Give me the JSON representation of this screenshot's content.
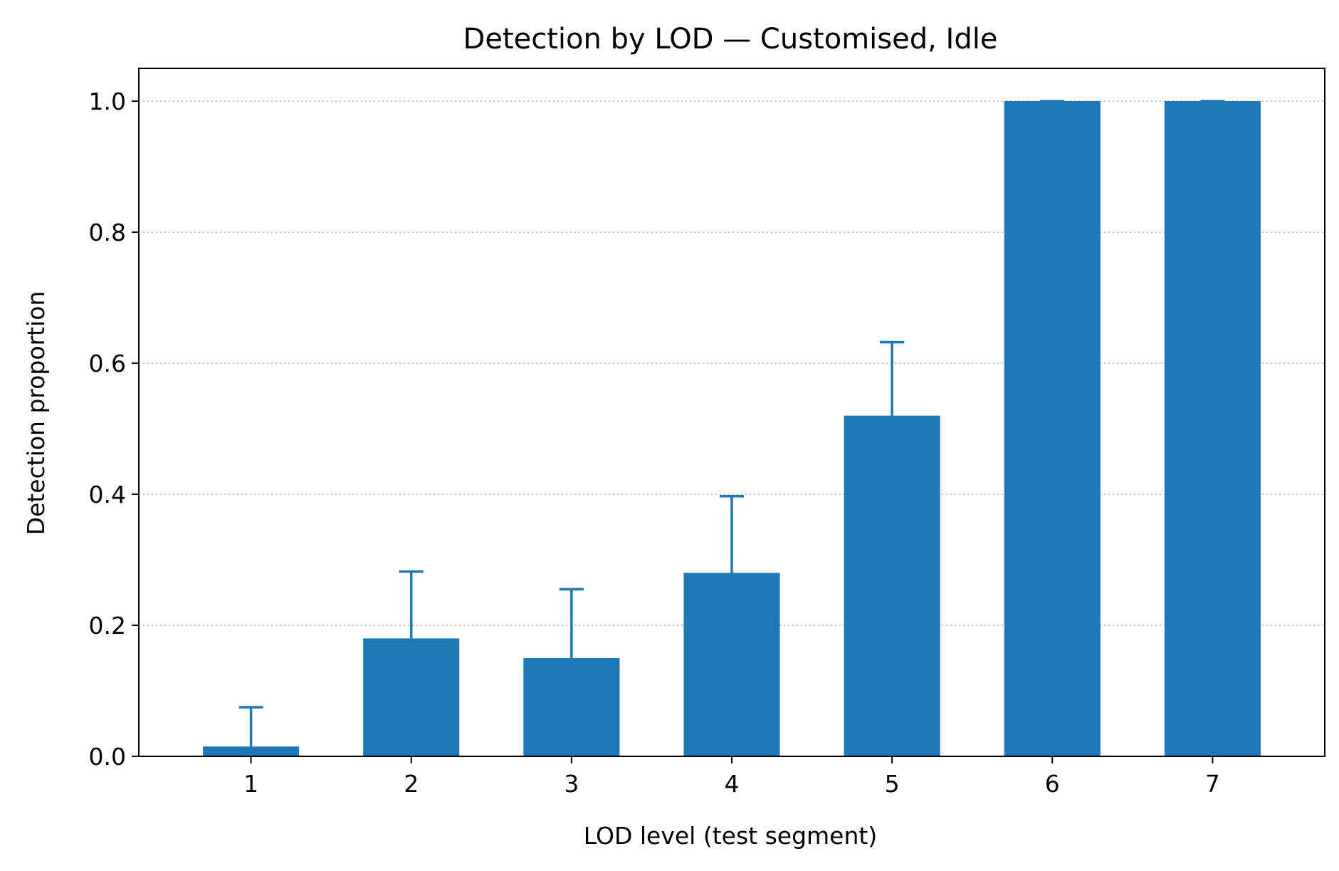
{
  "chart_data": {
    "type": "bar",
    "title": "Detection by LOD — Customised, Idle",
    "xlabel": "LOD level (test segment)",
    "ylabel": "Detection proportion",
    "categories": [
      "1",
      "2",
      "3",
      "4",
      "5",
      "6",
      "7"
    ],
    "values": [
      0.015,
      0.18,
      0.15,
      0.28,
      0.52,
      1.0,
      1.0
    ],
    "error_upper": [
      0.075,
      0.282,
      0.255,
      0.397,
      0.632,
      1.0,
      1.0
    ],
    "ylim": [
      0,
      1.05
    ],
    "yticks": [
      0.0,
      0.2,
      0.4,
      0.6,
      0.8,
      1.0
    ],
    "ytick_labels": [
      "0.0",
      "0.2",
      "0.4",
      "0.6",
      "0.8",
      "1.0"
    ],
    "grid": "horizontal dotted",
    "bar_color": "#1f77b4",
    "grid_color": "#b0b0b0"
  }
}
